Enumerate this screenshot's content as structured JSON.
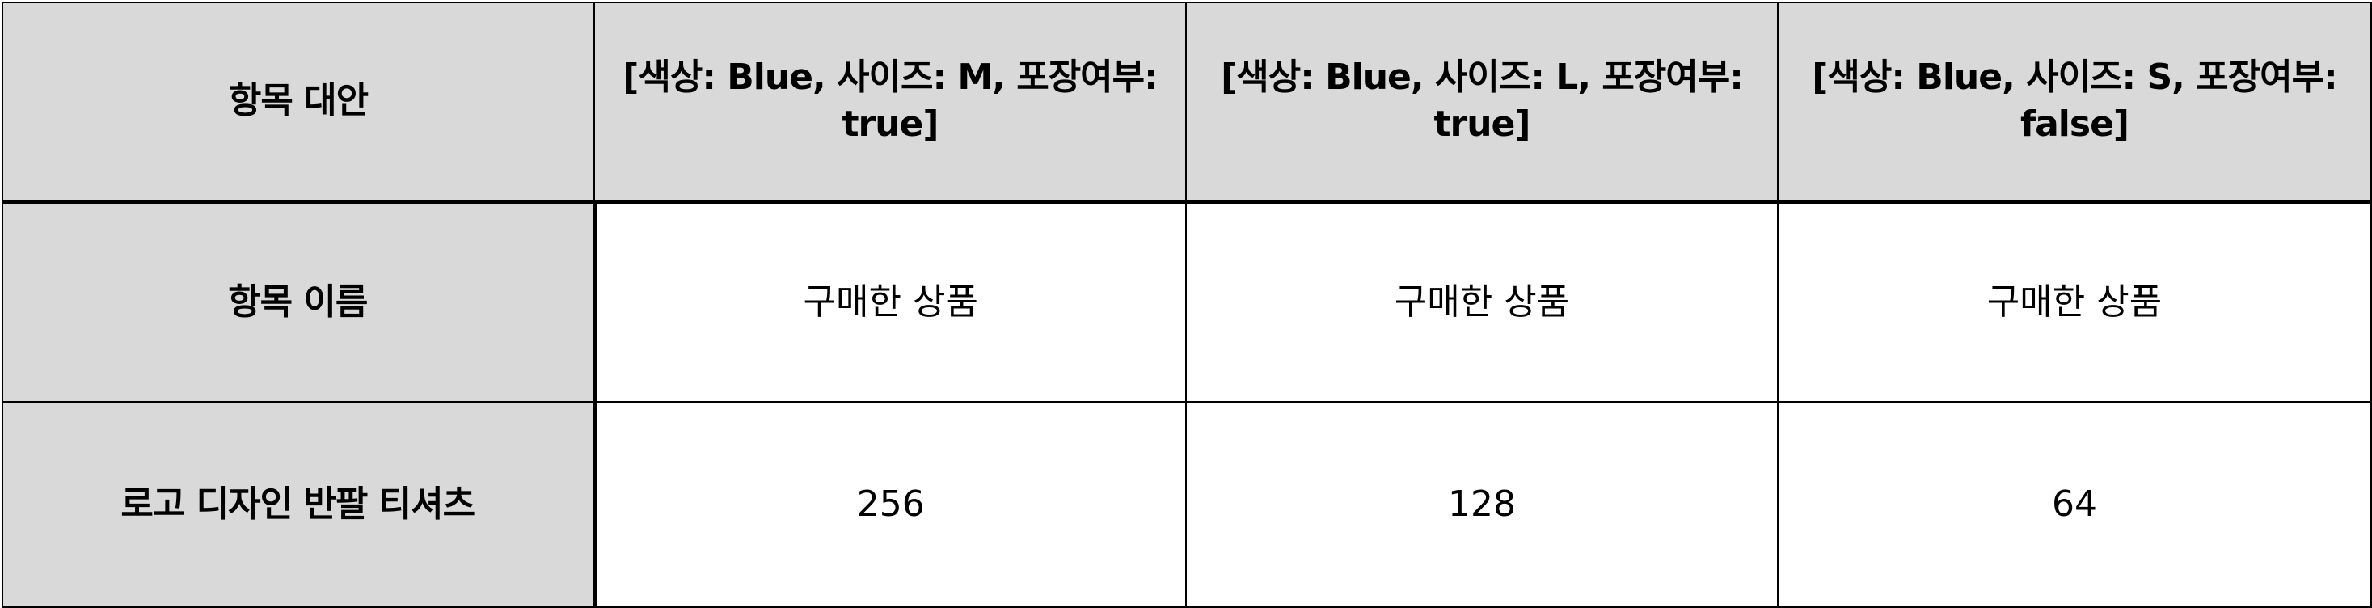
{
  "table": {
    "header": {
      "corner": "항목 대안",
      "alternatives": [
        "[색상: Blue, 사이즈: M, 포장여부: true]",
        "[색상: Blue, 사이즈: L, 포장여부: true]",
        "[색상: Blue, 사이즈: S, 포장여부: false]"
      ]
    },
    "rows": [
      {
        "label": "항목 이름",
        "values": [
          "구매한 상품",
          "구매한 상품",
          "구매한 상품"
        ]
      },
      {
        "label": "로고 디자인 반팔 티셔츠",
        "values": [
          "256",
          "128",
          "64"
        ]
      }
    ]
  }
}
